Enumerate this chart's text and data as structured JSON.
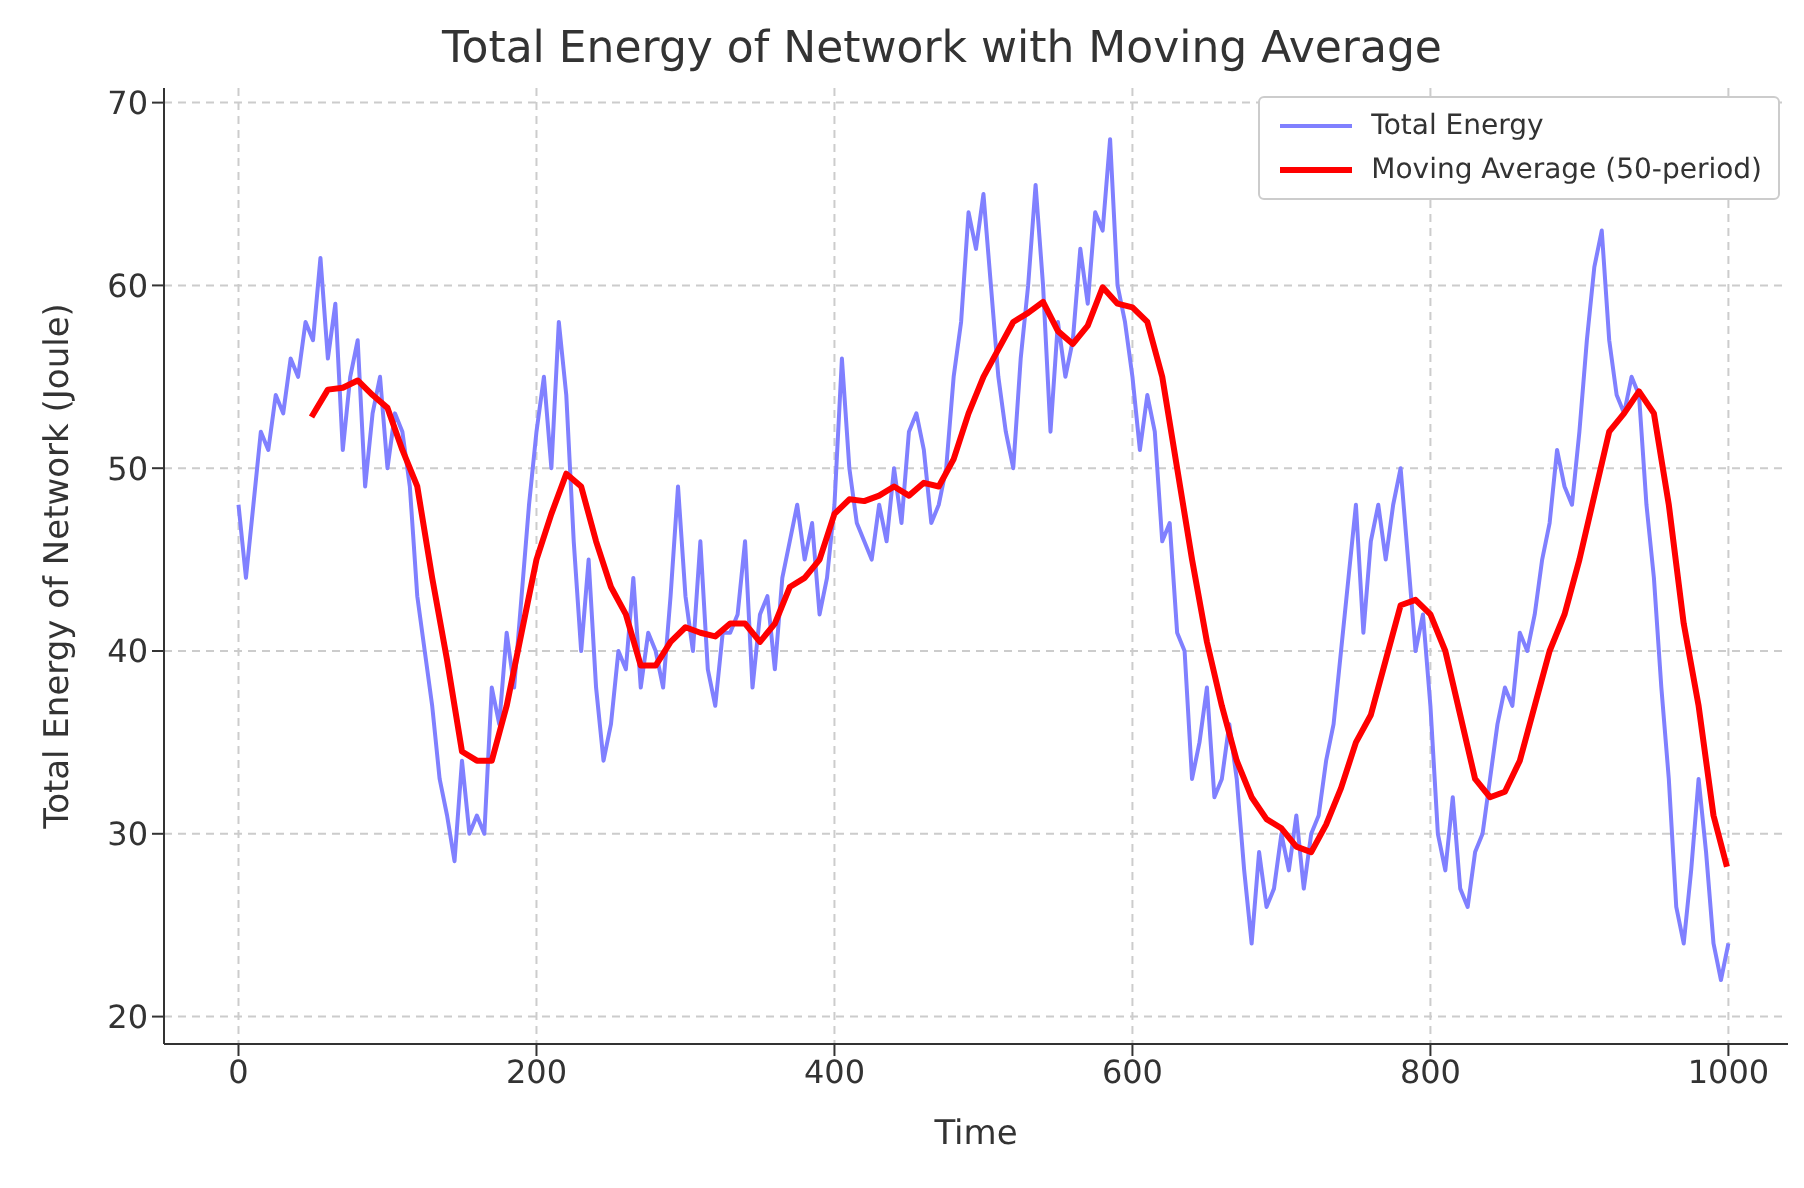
{
  "chart_data": {
    "type": "line",
    "title": "Total Energy of Network with Moving Average",
    "xlabel": "Time",
    "ylabel": "Total Energy of Network (Joule)",
    "xlim": [
      -50,
      1040
    ],
    "xticks": [
      0,
      200,
      400,
      600,
      800,
      1000
    ],
    "ylim": [
      18.5,
      70.8
    ],
    "yticks": [
      20,
      30,
      40,
      50,
      60,
      70
    ],
    "grid": true,
    "legend": "top right",
    "marker": "none",
    "line_style": "solid",
    "series": [
      {
        "name": "Total Energy",
        "color": "#8080ff",
        "x": [
          0,
          5,
          10,
          15,
          20,
          25,
          30,
          35,
          40,
          45,
          50,
          55,
          60,
          65,
          70,
          75,
          80,
          85,
          90,
          95,
          100,
          105,
          110,
          115,
          120,
          125,
          130,
          135,
          140,
          145,
          150,
          155,
          160,
          165,
          170,
          175,
          180,
          185,
          190,
          195,
          200,
          205,
          210,
          215,
          220,
          225,
          230,
          235,
          240,
          245,
          250,
          255,
          260,
          265,
          270,
          275,
          280,
          285,
          290,
          295,
          300,
          305,
          310,
          315,
          320,
          325,
          330,
          335,
          340,
          345,
          350,
          355,
          360,
          365,
          370,
          375,
          380,
          385,
          390,
          395,
          400,
          405,
          410,
          415,
          420,
          425,
          430,
          435,
          440,
          445,
          450,
          455,
          460,
          465,
          470,
          475,
          480,
          485,
          490,
          495,
          500,
          505,
          510,
          515,
          520,
          525,
          530,
          535,
          540,
          545,
          550,
          555,
          560,
          565,
          570,
          575,
          580,
          585,
          590,
          595,
          600,
          605,
          610,
          615,
          620,
          625,
          630,
          635,
          640,
          645,
          650,
          655,
          660,
          665,
          670,
          675,
          680,
          685,
          690,
          695,
          700,
          705,
          710,
          715,
          720,
          725,
          730,
          735,
          740,
          745,
          750,
          755,
          760,
          765,
          770,
          775,
          780,
          785,
          790,
          795,
          800,
          805,
          810,
          815,
          820,
          825,
          830,
          835,
          840,
          845,
          850,
          855,
          860,
          865,
          870,
          875,
          880,
          885,
          890,
          895,
          900,
          905,
          910,
          915,
          920,
          925,
          930,
          935,
          940,
          945,
          950,
          955,
          960,
          965,
          970,
          975,
          980,
          985,
          990,
          995,
          1000
        ],
        "values": [
          48,
          44,
          48,
          52,
          51,
          54,
          53,
          56,
          55,
          58,
          57,
          61.5,
          56,
          59,
          51,
          55,
          57,
          49,
          53,
          55,
          50,
          53,
          52,
          49,
          43,
          40,
          37,
          33,
          31,
          28.5,
          34,
          30,
          31,
          30,
          38,
          36,
          41,
          38,
          43,
          48,
          52,
          55,
          50,
          58,
          54,
          46,
          40,
          45,
          38,
          34,
          36,
          40,
          39,
          44,
          38,
          41,
          40,
          38,
          43,
          49,
          43,
          40,
          46,
          39,
          37,
          41,
          41,
          42,
          46,
          38,
          42,
          43,
          39,
          44,
          46,
          48,
          45,
          47,
          42,
          44,
          48,
          56,
          50,
          47,
          46,
          45,
          48,
          46,
          50,
          47,
          52,
          53,
          51,
          47,
          48,
          50,
          55,
          58,
          64,
          62,
          65,
          60,
          55,
          52,
          50,
          56,
          60,
          65.5,
          60,
          52,
          58,
          55,
          57,
          62,
          59,
          64,
          63,
          68,
          60,
          58,
          55,
          51,
          54,
          52,
          46,
          47,
          41,
          40,
          33,
          35,
          38,
          32,
          33,
          36,
          33,
          28,
          24,
          29,
          26,
          27,
          30,
          28,
          31,
          27,
          30,
          31,
          34,
          36,
          40,
          44,
          48,
          41,
          46,
          48,
          45,
          48,
          50,
          45,
          40,
          42,
          37,
          30,
          28,
          32,
          27,
          26,
          29,
          30,
          33,
          36,
          38,
          37,
          41,
          40,
          42,
          45,
          47,
          51,
          49,
          48,
          52,
          57,
          61,
          63,
          57,
          54,
          53,
          55,
          54,
          48,
          44,
          38,
          33,
          26,
          24,
          28,
          33,
          29,
          24,
          22,
          24
        ]
      },
      {
        "name": "Moving Average (50-period)",
        "color": "#ff0000",
        "x": [
          49,
          60,
          70,
          80,
          90,
          100,
          110,
          120,
          130,
          140,
          150,
          160,
          170,
          180,
          190,
          200,
          210,
          220,
          230,
          240,
          250,
          260,
          270,
          280,
          290,
          300,
          310,
          320,
          330,
          340,
          350,
          360,
          370,
          380,
          390,
          400,
          410,
          420,
          430,
          440,
          450,
          460,
          470,
          480,
          490,
          500,
          510,
          520,
          530,
          540,
          550,
          560,
          570,
          580,
          590,
          600,
          610,
          620,
          630,
          640,
          650,
          660,
          670,
          680,
          690,
          700,
          710,
          720,
          730,
          740,
          750,
          760,
          770,
          780,
          790,
          800,
          810,
          820,
          830,
          840,
          850,
          860,
          870,
          880,
          890,
          900,
          910,
          920,
          930,
          940,
          950,
          960,
          970,
          980,
          990,
          999
        ],
        "values": [
          52.8,
          54.3,
          54.4,
          54.8,
          54,
          53.3,
          51,
          49,
          44,
          39.5,
          34.5,
          34,
          34,
          37,
          41,
          45,
          47.5,
          49.7,
          49,
          46,
          43.5,
          42,
          39.2,
          39.2,
          40.5,
          41.3,
          41,
          40.8,
          41.5,
          41.5,
          40.5,
          41.5,
          43.5,
          44,
          45,
          47.5,
          48.3,
          48.2,
          48.5,
          49,
          48.5,
          49.2,
          49,
          50.5,
          53,
          55,
          56.5,
          58,
          58.5,
          59.1,
          57.5,
          56.8,
          57.8,
          59.9,
          59,
          58.8,
          58,
          55,
          50,
          45,
          40.5,
          37,
          34,
          32,
          30.8,
          30.3,
          29.3,
          29,
          30.5,
          32.5,
          35,
          36.5,
          39.5,
          42.5,
          42.8,
          42,
          40,
          36.5,
          33,
          32,
          32.3,
          34,
          37,
          40,
          42,
          45,
          48.5,
          52,
          53,
          54.2,
          53,
          48,
          41.5,
          37,
          31,
          28.2
        ]
      }
    ]
  }
}
